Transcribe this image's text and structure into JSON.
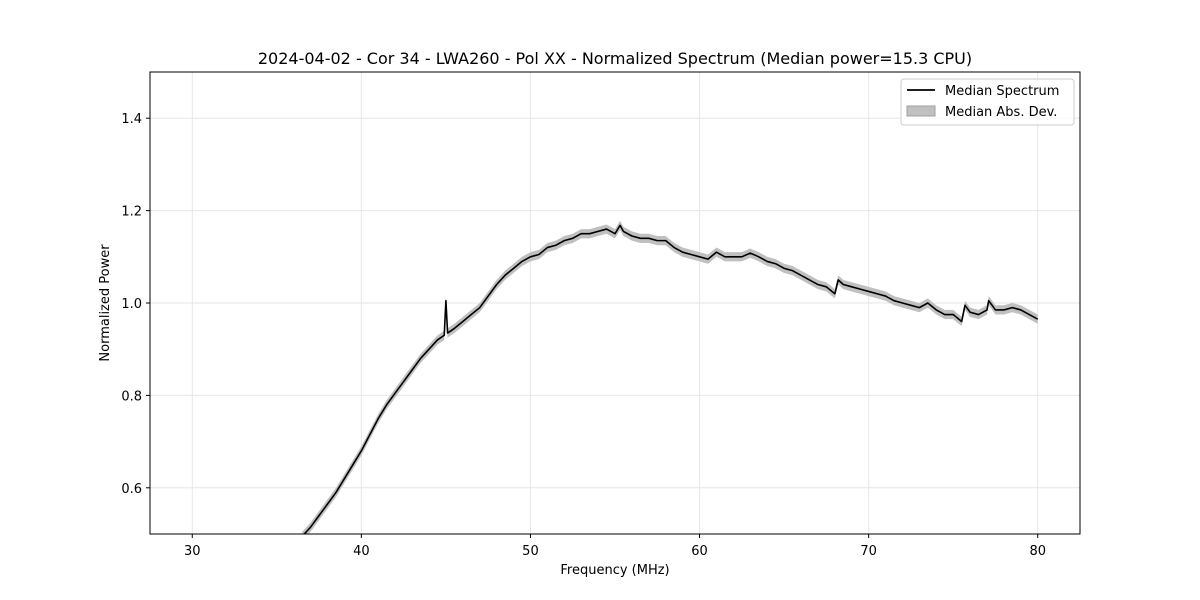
{
  "chart_data": {
    "type": "line",
    "title": "2024-04-02 - Cor 34 - LWA260 - Pol XX - Normalized Spectrum (Median power=15.3 CPU)",
    "xlabel": "Frequency (MHz)",
    "ylabel": "Normalized Power",
    "xlim": [
      27.5,
      82.5
    ],
    "ylim": [
      0.5,
      1.5
    ],
    "xticks": [
      30,
      40,
      50,
      60,
      70,
      80
    ],
    "xtick_labels": [
      "30",
      "40",
      "50",
      "60",
      "70",
      "80"
    ],
    "yticks": [
      0.6,
      0.8,
      1.0,
      1.2,
      1.4
    ],
    "ytick_labels": [
      "0.6",
      "0.8",
      "1.0",
      "1.2",
      "1.4"
    ],
    "grid": true,
    "legend_position": "top-right",
    "series": [
      {
        "name": "Median Spectrum",
        "kind": "line",
        "color": "#000000",
        "x": [
          36.5,
          37.0,
          37.5,
          38.0,
          38.5,
          39.0,
          39.5,
          40.0,
          40.5,
          41.0,
          41.5,
          42.0,
          42.5,
          43.0,
          43.5,
          44.0,
          44.5,
          44.9,
          45.0,
          45.1,
          45.5,
          46.0,
          46.5,
          47.0,
          47.5,
          48.0,
          48.5,
          49.0,
          49.5,
          50.0,
          50.5,
          51.0,
          51.5,
          52.0,
          52.5,
          53.0,
          53.5,
          54.0,
          54.5,
          55.0,
          55.3,
          55.5,
          56.0,
          56.5,
          57.0,
          57.5,
          58.0,
          58.5,
          59.0,
          59.5,
          60.0,
          60.5,
          61.0,
          61.5,
          62.0,
          62.5,
          63.0,
          63.5,
          64.0,
          64.5,
          65.0,
          65.5,
          66.0,
          66.5,
          67.0,
          67.5,
          68.0,
          68.2,
          68.5,
          69.0,
          69.5,
          70.0,
          70.5,
          71.0,
          71.5,
          72.0,
          72.5,
          73.0,
          73.5,
          74.0,
          74.5,
          75.0,
          75.5,
          75.7,
          76.0,
          76.5,
          77.0,
          77.1,
          77.5,
          78.0,
          78.5,
          79.0,
          79.5,
          80.0
        ],
        "values": [
          0.495,
          0.515,
          0.54,
          0.565,
          0.59,
          0.62,
          0.65,
          0.68,
          0.715,
          0.75,
          0.78,
          0.805,
          0.83,
          0.855,
          0.88,
          0.9,
          0.92,
          0.93,
          1.005,
          0.935,
          0.945,
          0.96,
          0.975,
          0.99,
          1.015,
          1.04,
          1.06,
          1.075,
          1.09,
          1.1,
          1.105,
          1.12,
          1.125,
          1.135,
          1.14,
          1.15,
          1.15,
          1.155,
          1.16,
          1.15,
          1.168,
          1.155,
          1.145,
          1.14,
          1.14,
          1.135,
          1.135,
          1.12,
          1.11,
          1.105,
          1.1,
          1.095,
          1.11,
          1.1,
          1.1,
          1.1,
          1.108,
          1.1,
          1.09,
          1.085,
          1.075,
          1.07,
          1.06,
          1.05,
          1.04,
          1.035,
          1.02,
          1.05,
          1.04,
          1.035,
          1.03,
          1.025,
          1.02,
          1.015,
          1.005,
          1.0,
          0.995,
          0.99,
          1.0,
          0.985,
          0.975,
          0.975,
          0.96,
          0.995,
          0.98,
          0.975,
          0.985,
          1.005,
          0.985,
          0.985,
          0.99,
          0.985,
          0.975,
          0.965
        ]
      },
      {
        "name": "Median Abs. Dev.",
        "kind": "band",
        "color": "#c0c0c0",
        "half_width": 0.01
      }
    ]
  }
}
